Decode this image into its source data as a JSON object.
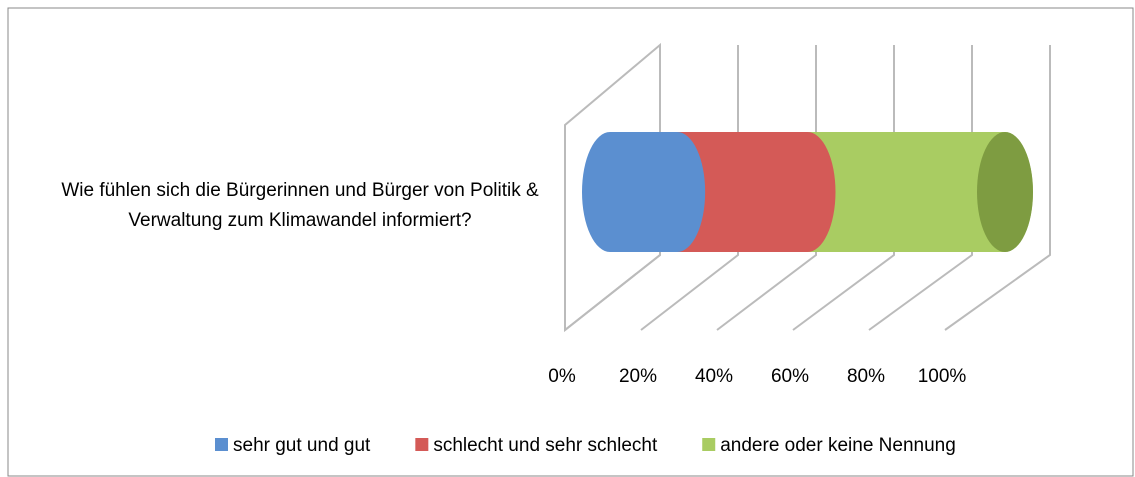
{
  "chart_data": {
    "type": "bar3d_stacked_horizontal",
    "categories": [
      "Wie fühlen sich die Bürgerinnen und Bürger von Politik & Verwaltung zum Klimawandel informiert?"
    ],
    "series": [
      {
        "name": "sehr gut und gut",
        "color": "#5b8fd0",
        "values": [
          17
        ]
      },
      {
        "name": "schlecht und sehr schlecht",
        "color": "#d45a57",
        "values": [
          33
        ]
      },
      {
        "name": "andere oder keine Nennung",
        "color": "#a9cc62",
        "values": [
          50
        ]
      }
    ],
    "xlim": [
      0,
      100
    ],
    "xticks": [
      {
        "value": 0,
        "label": "0%"
      },
      {
        "value": 20,
        "label": "20%"
      },
      {
        "value": 40,
        "label": "40%"
      },
      {
        "value": 60,
        "label": "60%"
      },
      {
        "value": 80,
        "label": "80%"
      },
      {
        "value": 100,
        "label": "100%"
      }
    ],
    "grid": true,
    "legend": "bottom"
  }
}
